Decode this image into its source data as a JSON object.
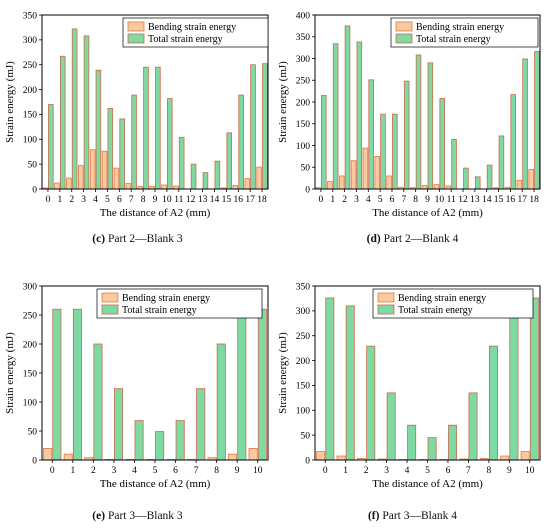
{
  "colors": {
    "bending_fill": "#f9c9a0",
    "bending_edge": "#e07a4a",
    "total_fill": "#7fd9a3",
    "total_edge": "#cc6a4a"
  },
  "panels": [
    {
      "letter": "(c)",
      "caption": "Part 2—Blank 3"
    },
    {
      "letter": "(d)",
      "caption": "Part 2—Blank 4"
    },
    {
      "letter": "(e)",
      "caption": "Part 3—Blank 3"
    },
    {
      "letter": "(f)",
      "caption": "Part 3—Blank 4"
    }
  ],
  "chart_data": [
    {
      "type": "bar",
      "xlabel": "The distance of A2 (mm)",
      "ylabel": "Strain energy (mJ)",
      "ylim": [
        0,
        350
      ],
      "yticks": [
        0,
        50,
        100,
        150,
        200,
        250,
        300,
        350
      ],
      "categories": [
        "0",
        "1",
        "2",
        "3",
        "4",
        "5",
        "6",
        "7",
        "8",
        "9",
        "10",
        "11",
        "12",
        "13",
        "14",
        "15",
        "16",
        "17",
        "18"
      ],
      "legend_position": "top-right",
      "series": [
        {
          "name": "Bending strain energy",
          "values": [
            2,
            12,
            22,
            47,
            79,
            76,
            42,
            11,
            5,
            5,
            8,
            6,
            0,
            0,
            0,
            2,
            7,
            21,
            44
          ]
        },
        {
          "name": "Total strain energy",
          "values": [
            170,
            267,
            322,
            308,
            239,
            162,
            141,
            189,
            245,
            245,
            182,
            104,
            50,
            33,
            56,
            113,
            189,
            250,
            252
          ]
        }
      ]
    },
    {
      "type": "bar",
      "xlabel": "The distance of A2 (mm)",
      "ylabel": "Strain energy (mJ)",
      "ylim": [
        0,
        400
      ],
      "yticks": [
        0,
        50,
        100,
        150,
        200,
        250,
        300,
        350,
        400
      ],
      "categories": [
        "0",
        "1",
        "2",
        "3",
        "4",
        "5",
        "6",
        "7",
        "8",
        "9",
        "10",
        "11",
        "12",
        "13",
        "14",
        "15",
        "16",
        "17",
        "18"
      ],
      "legend_position": "top-right",
      "series": [
        {
          "name": "Bending strain energy",
          "values": [
            3,
            17,
            30,
            65,
            94,
            75,
            30,
            4,
            3,
            8,
            10,
            7,
            0,
            0,
            0,
            3,
            4,
            20,
            45
          ]
        },
        {
          "name": "Total strain energy",
          "values": [
            215,
            334,
            375,
            338,
            251,
            172,
            172,
            248,
            308,
            290,
            208,
            114,
            48,
            28,
            55,
            122,
            217,
            299,
            316
          ]
        }
      ]
    },
    {
      "type": "bar",
      "xlabel": "The distance of A2 (mm)",
      "ylabel": "Strain energy (mJ)",
      "ylim": [
        0,
        300
      ],
      "yticks": [
        0,
        50,
        100,
        150,
        200,
        250,
        300
      ],
      "categories": [
        "0",
        "1",
        "2",
        "3",
        "4",
        "5",
        "6",
        "7",
        "8",
        "9",
        "10"
      ],
      "legend_position": "top-right",
      "series": [
        {
          "name": "Bending strain energy",
          "values": [
            20,
            10,
            4,
            1,
            1,
            1,
            1,
            1,
            4,
            10,
            20
          ]
        },
        {
          "name": "Total strain energy",
          "values": [
            260,
            260,
            200,
            123,
            68,
            49,
            68,
            123,
            200,
            260,
            260
          ]
        }
      ]
    },
    {
      "type": "bar",
      "xlabel": "The distance of A2 (mm)",
      "ylabel": "Strain energy (mJ)",
      "ylim": [
        0,
        350
      ],
      "yticks": [
        0,
        50,
        100,
        150,
        200,
        250,
        300,
        350
      ],
      "categories": [
        "0",
        "1",
        "2",
        "3",
        "4",
        "5",
        "6",
        "7",
        "8",
        "9",
        "10"
      ],
      "legend_position": "top-right",
      "series": [
        {
          "name": "Bending strain energy",
          "values": [
            17,
            8,
            3,
            2,
            1,
            1,
            1,
            2,
            3,
            8,
            17
          ]
        },
        {
          "name": "Total strain energy",
          "values": [
            326,
            310,
            229,
            135,
            70,
            45,
            70,
            135,
            229,
            310,
            326
          ]
        }
      ]
    }
  ]
}
